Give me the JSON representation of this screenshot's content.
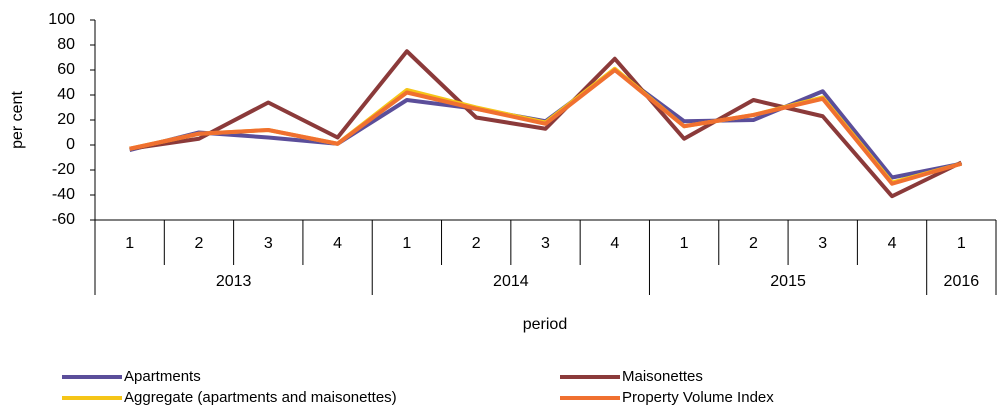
{
  "chart_data": {
    "type": "line",
    "ylabel": "per cent",
    "xlabel": "period",
    "groups": [
      {
        "label": "2013",
        "categories": [
          "1",
          "2",
          "3",
          "4"
        ]
      },
      {
        "label": "2014",
        "categories": [
          "1",
          "2",
          "3",
          "4"
        ]
      },
      {
        "label": "2015",
        "categories": [
          "1",
          "2",
          "3",
          "4"
        ]
      },
      {
        "label": "2016",
        "categories": [
          "1"
        ]
      }
    ],
    "series": [
      {
        "name": "Apartments",
        "color": "#5b4e9a",
        "values": [
          -4,
          10,
          6,
          1,
          36,
          29,
          19,
          60,
          19,
          20,
          43,
          -26,
          -15
        ]
      },
      {
        "name": "Maisonettes",
        "color": "#8b3a3a",
        "values": [
          -3,
          5,
          34,
          6,
          75,
          22,
          13,
          69,
          5,
          36,
          23,
          -41,
          -14
        ]
      },
      {
        "name": "Aggregate (apartments and maisonettes)",
        "color": "#f5c518",
        "values": [
          -3,
          9,
          12,
          1,
          44,
          30,
          18,
          61,
          15,
          24,
          38,
          -30,
          -15
        ]
      },
      {
        "name": "Property Volume Index",
        "color": "#f07030",
        "values": [
          -3,
          9,
          12,
          1,
          42,
          29,
          17,
          60,
          15,
          24,
          37,
          -31,
          -15
        ]
      }
    ],
    "ylim": [
      -60,
      100
    ],
    "yticks": [
      -60,
      -40,
      -20,
      0,
      20,
      40,
      60,
      80,
      100
    ]
  }
}
